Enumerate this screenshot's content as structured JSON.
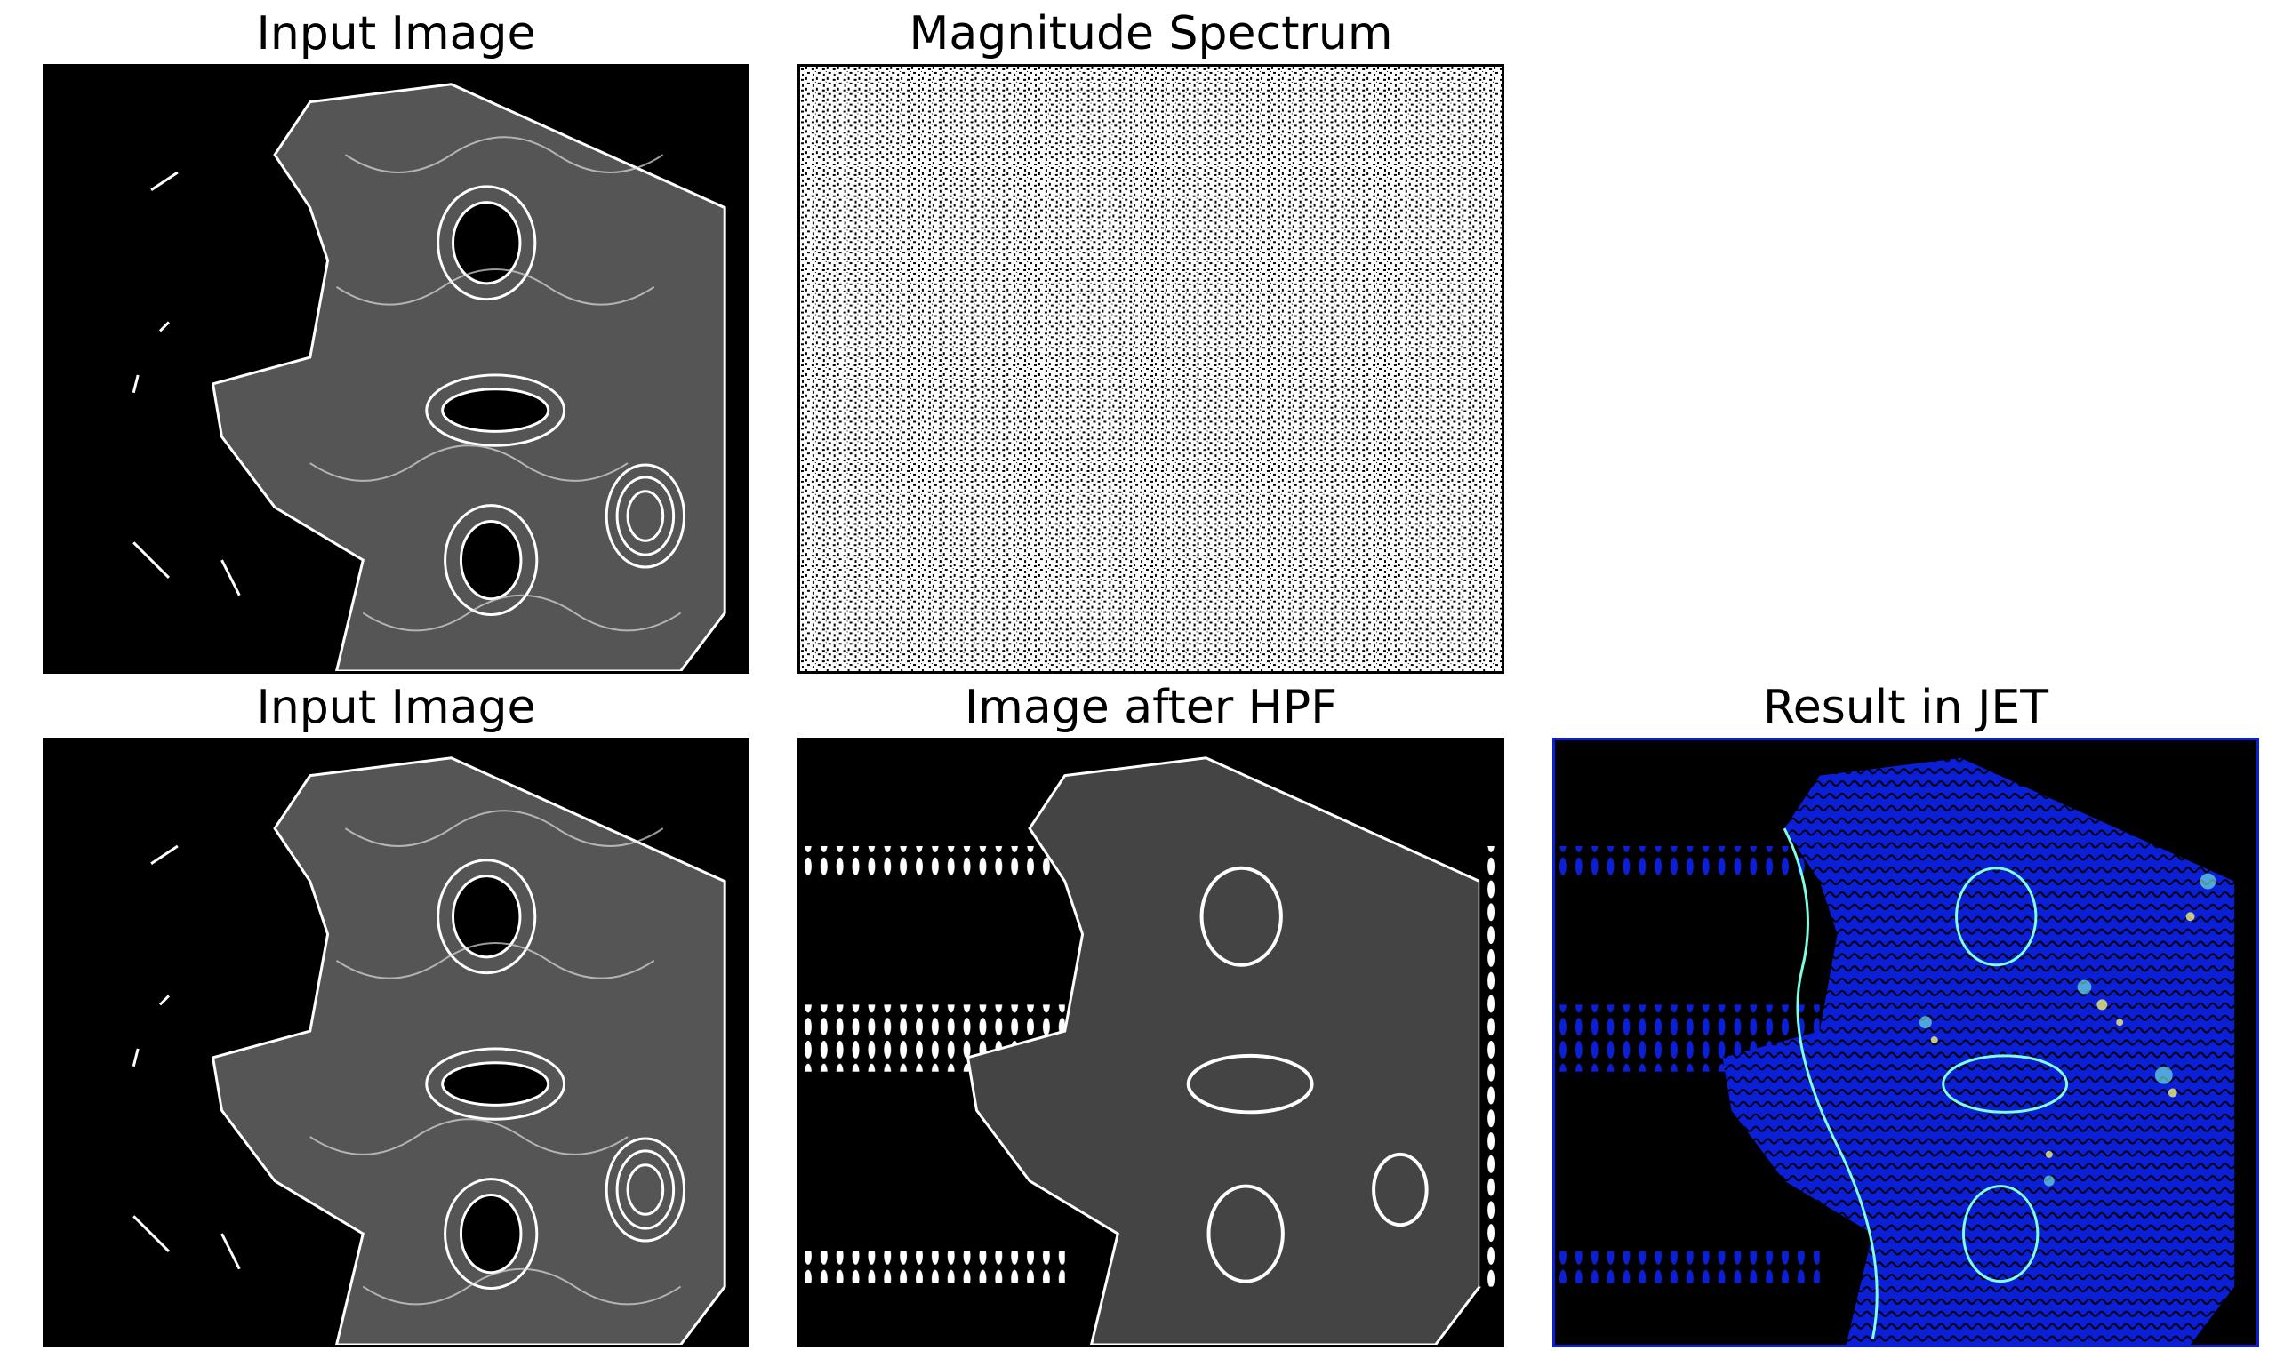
{
  "figure": {
    "panels": [
      {
        "title": "Input Image",
        "background": "#000000"
      },
      {
        "title": "Magnitude Spectrum",
        "background": "#ffffff"
      },
      {
        "title": "Input Image",
        "background": "#000000"
      },
      {
        "title": "Image after HPF",
        "background": "#000000"
      },
      {
        "title": "Result in JET",
        "background": "#000000"
      }
    ],
    "colors": {
      "edge_lines": "#ffffff",
      "jet_blue": "#0a1fd6",
      "jet_cyan": "#7fffe0",
      "jet_yellow": "#f2f27a",
      "frame": "#000000"
    }
  }
}
